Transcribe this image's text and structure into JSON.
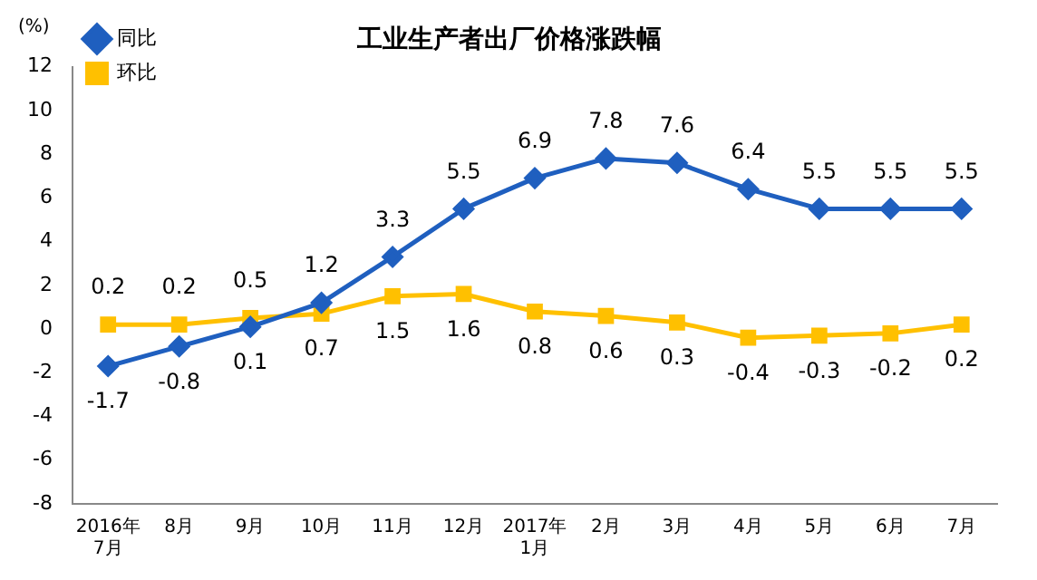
{
  "chart_data": {
    "type": "line",
    "title": "工业生产者出厂价格涨跌幅",
    "ylabel": "(%)",
    "categories": [
      "2016年\n7月",
      "8月",
      "9月",
      "10月",
      "11月",
      "12月",
      "2017年\n1月",
      "2月",
      "3月",
      "4月",
      "5月",
      "6月",
      "7月"
    ],
    "series": [
      {
        "name": "同比",
        "color": "#1f5fbf",
        "marker": "diamond",
        "values": [
          -1.7,
          -0.8,
          0.1,
          1.2,
          3.3,
          5.5,
          6.9,
          7.8,
          7.6,
          6.4,
          5.5,
          5.5,
          5.5
        ]
      },
      {
        "name": "环比",
        "color": "#ffc000",
        "marker": "square",
        "values": [
          0.2,
          0.2,
          0.5,
          0.7,
          1.5,
          1.6,
          0.8,
          0.6,
          0.3,
          -0.4,
          -0.3,
          -0.2,
          0.2
        ]
      }
    ],
    "ylim": [
      -8,
      12
    ],
    "yticks": [
      -8,
      -6,
      -4,
      -2,
      0,
      2,
      4,
      6,
      8,
      10,
      12
    ],
    "grid": false,
    "legend": "top left",
    "data_labels": true,
    "line_style": "solid"
  }
}
